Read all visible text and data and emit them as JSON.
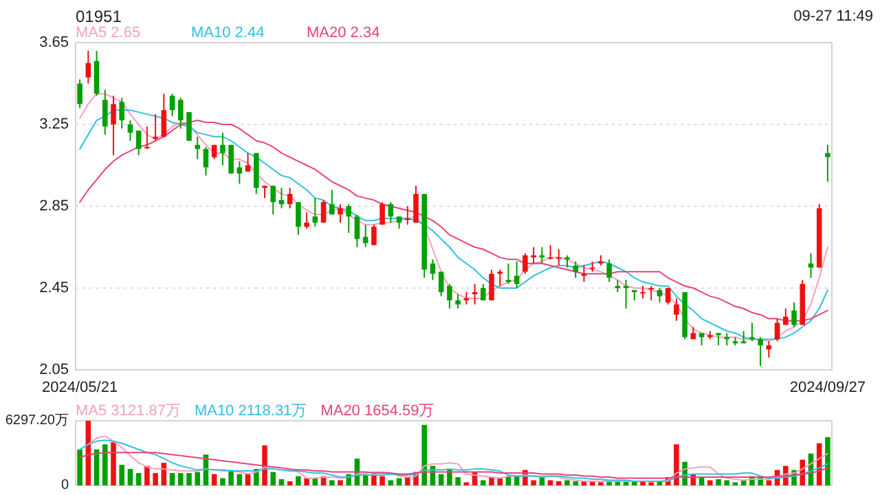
{
  "chart_data": [
    {
      "type": "candlestick",
      "title": "01951",
      "annotations": [
        "09-27 11:49"
      ],
      "categories": [
        "2024/05/21",
        null,
        null,
        null,
        null,
        null,
        null,
        null,
        null,
        null,
        null,
        null,
        null,
        null,
        null,
        null,
        null,
        null,
        null,
        null,
        null,
        null,
        null,
        null,
        null,
        null,
        null,
        null,
        null,
        null,
        null,
        null,
        null,
        null,
        null,
        null,
        null,
        null,
        null,
        null,
        null,
        null,
        null,
        null,
        null,
        null,
        null,
        null,
        null,
        null,
        null,
        null,
        null,
        null,
        null,
        null,
        null,
        null,
        null,
        null,
        null,
        null,
        null,
        null,
        null,
        null,
        null,
        null,
        null,
        null,
        null,
        null,
        null,
        null,
        null,
        null,
        null,
        null,
        null,
        null,
        null,
        null,
        null,
        null,
        null,
        null,
        null,
        null,
        null,
        "2024/09/27"
      ],
      "ohlc": [
        [
          3.45,
          3.47,
          3.33,
          3.35
        ],
        [
          3.48,
          3.61,
          3.45,
          3.55
        ],
        [
          3.56,
          3.61,
          3.39,
          3.4
        ],
        [
          3.37,
          3.42,
          3.2,
          3.24
        ],
        [
          3.25,
          3.39,
          3.1,
          3.35
        ],
        [
          3.36,
          3.38,
          3.23,
          3.27
        ],
        [
          3.25,
          3.27,
          3.17,
          3.21
        ],
        [
          3.22,
          3.22,
          3.1,
          3.13
        ],
        [
          3.14,
          3.24,
          3.13,
          3.14
        ],
        [
          3.18,
          3.3,
          3.17,
          3.19
        ],
        [
          3.19,
          3.4,
          3.19,
          3.32
        ],
        [
          3.39,
          3.4,
          3.29,
          3.32
        ],
        [
          3.37,
          3.38,
          3.23,
          3.27
        ],
        [
          3.31,
          3.31,
          3.17,
          3.17
        ],
        [
          3.15,
          3.19,
          3.08,
          3.13
        ],
        [
          3.13,
          3.14,
          3.0,
          3.04
        ],
        [
          3.09,
          3.15,
          3.08,
          3.15
        ],
        [
          3.15,
          3.21,
          3.05,
          3.11
        ],
        [
          3.15,
          3.15,
          3.01,
          3.01
        ],
        [
          3.04,
          3.07,
          2.96,
          3.01
        ],
        [
          3.02,
          3.11,
          3.02,
          3.05
        ],
        [
          3.11,
          3.11,
          2.91,
          2.94
        ],
        [
          2.94,
          2.95,
          2.89,
          2.95
        ],
        [
          2.95,
          2.95,
          2.81,
          2.87
        ],
        [
          2.88,
          2.94,
          2.84,
          2.86
        ],
        [
          2.86,
          2.94,
          2.84,
          2.91
        ],
        [
          2.87,
          2.87,
          2.71,
          2.75
        ],
        [
          2.75,
          2.82,
          2.74,
          2.77
        ],
        [
          2.8,
          2.89,
          2.75,
          2.77
        ],
        [
          2.77,
          2.88,
          2.77,
          2.87
        ],
        [
          2.86,
          2.93,
          2.81,
          2.81
        ],
        [
          2.81,
          2.86,
          2.77,
          2.84
        ],
        [
          2.85,
          2.86,
          2.72,
          2.8
        ],
        [
          2.8,
          2.81,
          2.65,
          2.69
        ],
        [
          2.7,
          2.76,
          2.65,
          2.67
        ],
        [
          2.66,
          2.76,
          2.66,
          2.75
        ],
        [
          2.76,
          2.87,
          2.76,
          2.86
        ],
        [
          2.86,
          2.87,
          2.77,
          2.8
        ],
        [
          2.8,
          2.8,
          2.74,
          2.77
        ],
        [
          2.79,
          2.85,
          2.76,
          2.79
        ],
        [
          2.77,
          2.95,
          2.77,
          2.91
        ],
        [
          2.91,
          2.91,
          2.5,
          2.54
        ],
        [
          2.57,
          2.59,
          2.49,
          2.52
        ],
        [
          2.53,
          2.53,
          2.41,
          2.43
        ],
        [
          2.46,
          2.47,
          2.35,
          2.39
        ],
        [
          2.39,
          2.42,
          2.35,
          2.37
        ],
        [
          2.39,
          2.43,
          2.37,
          2.4
        ],
        [
          2.42,
          2.47,
          2.37,
          2.43
        ],
        [
          2.45,
          2.47,
          2.39,
          2.39
        ],
        [
          2.39,
          2.54,
          2.39,
          2.52
        ],
        [
          2.52,
          2.54,
          2.46,
          2.53
        ],
        [
          2.49,
          2.57,
          2.47,
          2.48
        ],
        [
          2.51,
          2.58,
          2.45,
          2.47
        ],
        [
          2.53,
          2.62,
          2.52,
          2.61
        ],
        [
          2.6,
          2.65,
          2.57,
          2.61
        ],
        [
          2.61,
          2.65,
          2.57,
          2.6
        ],
        [
          2.6,
          2.66,
          2.59,
          2.6
        ],
        [
          2.6,
          2.64,
          2.56,
          2.6
        ],
        [
          2.6,
          2.61,
          2.55,
          2.59
        ],
        [
          2.56,
          2.58,
          2.5,
          2.53
        ],
        [
          2.51,
          2.56,
          2.48,
          2.52
        ],
        [
          2.55,
          2.58,
          2.53,
          2.55
        ],
        [
          2.57,
          2.61,
          2.56,
          2.58
        ],
        [
          2.57,
          2.59,
          2.48,
          2.5
        ],
        [
          2.46,
          2.49,
          2.43,
          2.45
        ],
        [
          2.46,
          2.49,
          2.35,
          2.45
        ],
        [
          2.44,
          2.44,
          2.39,
          2.43
        ],
        [
          2.43,
          2.46,
          2.4,
          2.43
        ],
        [
          2.45,
          2.46,
          2.39,
          2.45
        ],
        [
          2.44,
          2.45,
          2.38,
          2.41
        ],
        [
          2.38,
          2.45,
          2.37,
          2.45
        ],
        [
          2.32,
          2.4,
          2.29,
          2.37
        ],
        [
          2.43,
          2.43,
          2.2,
          2.21
        ],
        [
          2.2,
          2.26,
          2.2,
          2.23
        ],
        [
          2.23,
          2.23,
          2.17,
          2.21
        ],
        [
          2.21,
          2.24,
          2.2,
          2.22
        ],
        [
          2.23,
          2.23,
          2.17,
          2.22
        ],
        [
          2.21,
          2.23,
          2.17,
          2.2
        ],
        [
          2.19,
          2.21,
          2.17,
          2.18
        ],
        [
          2.19,
          2.24,
          2.18,
          2.18
        ],
        [
          2.21,
          2.28,
          2.19,
          2.2
        ],
        [
          2.2,
          2.21,
          2.07,
          2.17
        ],
        [
          2.15,
          2.19,
          2.11,
          2.17
        ],
        [
          2.2,
          2.3,
          2.19,
          2.28
        ],
        [
          2.27,
          2.35,
          2.27,
          2.31
        ],
        [
          2.34,
          2.38,
          2.26,
          2.27
        ],
        [
          2.27,
          2.49,
          2.27,
          2.47
        ],
        [
          2.57,
          2.62,
          2.5,
          2.55
        ],
        [
          2.55,
          2.86,
          2.55,
          2.84
        ],
        [
          3.11,
          3.15,
          2.97,
          3.09
        ]
      ],
      "series": [
        {
          "type": "line",
          "name": "MA5 2.65",
          "color": "#f7a0bd",
          "values": [
            3.28,
            3.35,
            3.4,
            3.4,
            3.38,
            3.36,
            3.3,
            3.25,
            3.2,
            3.18,
            3.2,
            3.24,
            3.26,
            3.25,
            3.2,
            3.15,
            3.11,
            3.11,
            3.08,
            3.08,
            3.06,
            3.01,
            2.97,
            2.94,
            2.91,
            2.9,
            2.86,
            2.83,
            2.81,
            2.81,
            2.83,
            2.84,
            2.81,
            2.78,
            2.76,
            2.76,
            2.77,
            2.77,
            2.78,
            2.79,
            2.8,
            2.75,
            2.64,
            2.53,
            2.45,
            2.42,
            2.4,
            2.4,
            2.4,
            2.44,
            2.46,
            2.48,
            2.49,
            2.54,
            2.57,
            2.58,
            2.6,
            2.6,
            2.59,
            2.57,
            2.55,
            2.54,
            2.53,
            2.51,
            2.49,
            2.46,
            2.45,
            2.45,
            2.44,
            2.43,
            2.41,
            2.37,
            2.3,
            2.25,
            2.23,
            2.22,
            2.21,
            2.21,
            2.21,
            2.2,
            2.2,
            2.2,
            2.19,
            2.21,
            2.24,
            2.26,
            2.29,
            2.37,
            2.5,
            2.65
          ]
        },
        {
          "type": "line",
          "name": "MA10 2.44",
          "color": "#2fc0e0",
          "values": [
            3.13,
            3.2,
            3.27,
            3.29,
            3.32,
            3.32,
            3.32,
            3.31,
            3.3,
            3.29,
            3.28,
            3.26,
            3.25,
            3.24,
            3.21,
            3.2,
            3.19,
            3.19,
            3.17,
            3.14,
            3.11,
            3.09,
            3.06,
            3.03,
            3.0,
            2.99,
            2.96,
            2.93,
            2.89,
            2.88,
            2.85,
            2.84,
            2.83,
            2.8,
            2.78,
            2.78,
            2.79,
            2.79,
            2.79,
            2.79,
            2.78,
            2.76,
            2.73,
            2.69,
            2.65,
            2.6,
            2.57,
            2.54,
            2.5,
            2.47,
            2.45,
            2.45,
            2.45,
            2.48,
            2.51,
            2.53,
            2.55,
            2.56,
            2.56,
            2.55,
            2.56,
            2.57,
            2.58,
            2.57,
            2.55,
            2.53,
            2.5,
            2.48,
            2.47,
            2.46,
            2.46,
            2.41,
            2.37,
            2.34,
            2.3,
            2.28,
            2.26,
            2.24,
            2.23,
            2.21,
            2.2,
            2.2,
            2.2,
            2.2,
            2.21,
            2.23,
            2.26,
            2.29,
            2.35,
            2.44
          ]
        },
        {
          "type": "line",
          "name": "MA20 2.34",
          "color": "#e9417a",
          "values": [
            2.87,
            2.93,
            2.98,
            3.03,
            3.07,
            3.1,
            3.12,
            3.14,
            3.15,
            3.17,
            3.19,
            3.22,
            3.25,
            3.26,
            3.27,
            3.26,
            3.26,
            3.25,
            3.25,
            3.23,
            3.2,
            3.17,
            3.16,
            3.14,
            3.11,
            3.09,
            3.07,
            3.05,
            3.03,
            3.0,
            2.97,
            2.95,
            2.93,
            2.9,
            2.89,
            2.88,
            2.86,
            2.85,
            2.84,
            2.83,
            2.82,
            2.8,
            2.78,
            2.75,
            2.71,
            2.69,
            2.67,
            2.65,
            2.64,
            2.62,
            2.6,
            2.59,
            2.59,
            2.57,
            2.57,
            2.57,
            2.56,
            2.55,
            2.54,
            2.53,
            2.52,
            2.52,
            2.52,
            2.52,
            2.53,
            2.53,
            2.53,
            2.53,
            2.53,
            2.53,
            2.5,
            2.48,
            2.46,
            2.45,
            2.43,
            2.41,
            2.4,
            2.38,
            2.36,
            2.35,
            2.33,
            2.32,
            2.3,
            2.3,
            2.29,
            2.29,
            2.29,
            2.3,
            2.32,
            2.34
          ]
        }
      ],
      "ylim": [
        2.05,
        3.65
      ],
      "yticks": [
        3.65,
        3.25,
        2.85,
        2.45,
        2.05
      ],
      "grid": "y",
      "legend": "top left"
    },
    {
      "type": "bar",
      "categories": [
        null,
        null,
        null,
        null,
        null,
        null,
        null,
        null,
        null,
        null,
        null,
        null,
        null,
        null,
        null,
        null,
        null,
        null,
        null,
        null,
        null,
        null,
        null,
        null,
        null,
        null,
        null,
        null,
        null,
        null,
        null,
        null,
        null,
        null,
        null,
        null,
        null,
        null,
        null,
        null,
        null,
        null,
        null,
        null,
        null,
        null,
        null,
        null,
        null,
        null,
        null,
        null,
        null,
        null,
        null,
        null,
        null,
        null,
        null,
        null,
        null,
        null,
        null,
        null,
        null,
        null,
        null,
        null,
        null,
        null,
        null,
        null,
        null,
        null,
        null,
        null,
        null,
        null,
        null,
        null,
        null,
        null,
        null,
        null,
        null,
        null,
        null,
        null,
        null,
        null
      ],
      "series": [
        {
          "type": "bar",
          "colors": [
            "#00a000",
            "#f01010",
            "#00a000",
            "#00a000",
            "#f01010",
            "#00a000",
            "#00a000",
            "#00a000",
            "#f01010",
            "#f01010",
            "#f01010",
            "#00a000",
            "#00a000",
            "#00a000",
            "#00a000",
            "#00a000",
            "#f01010",
            "#00a000",
            "#00a000",
            "#00a000",
            "#f01010",
            "#00a000",
            "#f01010",
            "#00a000",
            "#00a000",
            "#f01010",
            "#00a000",
            "#f01010",
            "#00a000",
            "#f01010",
            "#00a000",
            "#f01010",
            "#00a000",
            "#00a000",
            "#00a000",
            "#f01010",
            "#f01010",
            "#00a000",
            "#00a000",
            "#f01010",
            "#f01010",
            "#00a000",
            "#00a000",
            "#00a000",
            "#00a000",
            "#00a000",
            "#f01010",
            "#f01010",
            "#00a000",
            "#f01010",
            "#f01010",
            "#00a000",
            "#00a000",
            "#f01010",
            "#f01010",
            "#00a000",
            "#f01010",
            "#f01010",
            "#00a000",
            "#00a000",
            "#f01010",
            "#f01010",
            "#f01010",
            "#00a000",
            "#00a000",
            "#00a000",
            "#00a000",
            "#f01010",
            "#f01010",
            "#00a000",
            "#f01010",
            "#f01010",
            "#00a000",
            "#f01010",
            "#00a000",
            "#f01010",
            "#00a000",
            "#00a000",
            "#00a000",
            "#00a000",
            "#00a000",
            "#00a000",
            "#f01010",
            "#f01010",
            "#f01010",
            "#00a000",
            "#f01010",
            "#00a000",
            "#f01010",
            "#00a000"
          ],
          "values": [
            3500,
            6297.2,
            3500,
            4000,
            4200,
            2000,
            1600,
            1200,
            1900,
            1200,
            2200,
            1200,
            1200,
            1200,
            1300,
            3000,
            1100,
            700,
            1500,
            1100,
            1200,
            1600,
            3900,
            1300,
            600,
            400,
            900,
            700,
            700,
            900,
            500,
            500,
            1100,
            2600,
            1100,
            1100,
            900,
            500,
            700,
            800,
            1300,
            5900,
            1900,
            1100,
            1600,
            800,
            300,
            1300,
            500,
            800,
            700,
            900,
            900,
            1500,
            500,
            900,
            500,
            400,
            500,
            400,
            400,
            400,
            300,
            500,
            400,
            400,
            400,
            400,
            300,
            400,
            800,
            4000,
            2300,
            1100,
            800,
            500,
            600,
            500,
            300,
            500,
            900,
            900,
            500,
            1500,
            1900,
            1500,
            2500,
            3100,
            4100,
            4700
          ]
        },
        {
          "type": "line",
          "name": "MA5 3121.87万",
          "color": "#f7a0bd",
          "values": [
            3500,
            4000,
            4600,
            4800,
            4300,
            3700,
            2900,
            2200,
            1800,
            1600,
            1600,
            1500,
            1400,
            1400,
            1400,
            1600,
            1500,
            1400,
            1400,
            1300,
            1100,
            1300,
            1800,
            1800,
            1700,
            1500,
            1300,
            700,
            700,
            800,
            800,
            700,
            800,
            1100,
            1200,
            1300,
            1300,
            1200,
            900,
            800,
            900,
            1900,
            2100,
            2100,
            2200,
            2100,
            1100,
            1000,
            900,
            800,
            700,
            900,
            900,
            1000,
            900,
            900,
            900,
            800,
            600,
            500,
            400,
            400,
            400,
            400,
            400,
            400,
            400,
            400,
            400,
            400,
            500,
            1200,
            1600,
            1700,
            1800,
            1800,
            1100,
            700,
            600,
            500,
            600,
            600,
            600,
            800,
            1100,
            1200,
            1600,
            2100,
            2600,
            3100
          ]
        },
        {
          "type": "line",
          "name": "MA10 2118.31万",
          "color": "#2fc0e0",
          "values": [
            3500,
            4000,
            4300,
            4400,
            4300,
            4100,
            3800,
            3500,
            3200,
            3000,
            2600,
            2200,
            1900,
            1700,
            1500,
            1600,
            1500,
            1500,
            1400,
            1400,
            1400,
            1400,
            1600,
            1600,
            1500,
            1400,
            1400,
            1300,
            1200,
            1200,
            1000,
            800,
            800,
            1000,
            1000,
            1000,
            1000,
            1100,
            1000,
            1000,
            1100,
            1500,
            1500,
            1500,
            1600,
            1500,
            1500,
            1600,
            1600,
            1500,
            1400,
            1000,
            900,
            900,
            900,
            800,
            900,
            900,
            800,
            700,
            700,
            600,
            600,
            500,
            500,
            500,
            400,
            400,
            400,
            400,
            400,
            800,
            1000,
            1100,
            1100,
            1100,
            1100,
            1100,
            1100,
            1200,
            1200,
            900,
            700,
            700,
            800,
            900,
            1100,
            1400,
            1700,
            2100
          ]
        },
        {
          "type": "line",
          "name": "MA20 1654.59万",
          "color": "#e9417a",
          "values": [
            2700,
            3000,
            3100,
            3200,
            3200,
            3200,
            3200,
            3200,
            3200,
            3200,
            3100,
            3000,
            2900,
            2800,
            2700,
            2600,
            2500,
            2400,
            2300,
            2200,
            2100,
            2000,
            1900,
            1800,
            1700,
            1600,
            1500,
            1500,
            1400,
            1400,
            1300,
            1300,
            1300,
            1300,
            1300,
            1200,
            1200,
            1200,
            1100,
            1100,
            1200,
            1300,
            1300,
            1300,
            1300,
            1300,
            1300,
            1300,
            1300,
            1300,
            1200,
            1200,
            1200,
            1200,
            1200,
            1100,
            1100,
            1100,
            1000,
            1000,
            900,
            900,
            800,
            800,
            700,
            700,
            700,
            700,
            700,
            700,
            700,
            800,
            800,
            800,
            800,
            800,
            800,
            800,
            800,
            800,
            800,
            800,
            800,
            900,
            900,
            1000,
            1100,
            1200,
            1400,
            1700
          ]
        }
      ],
      "ylim": [
        0,
        6297.2
      ],
      "yticks": [
        {
          "value": 6297.2,
          "label": "6297.20万"
        },
        0
      ],
      "legend": "top left"
    }
  ]
}
